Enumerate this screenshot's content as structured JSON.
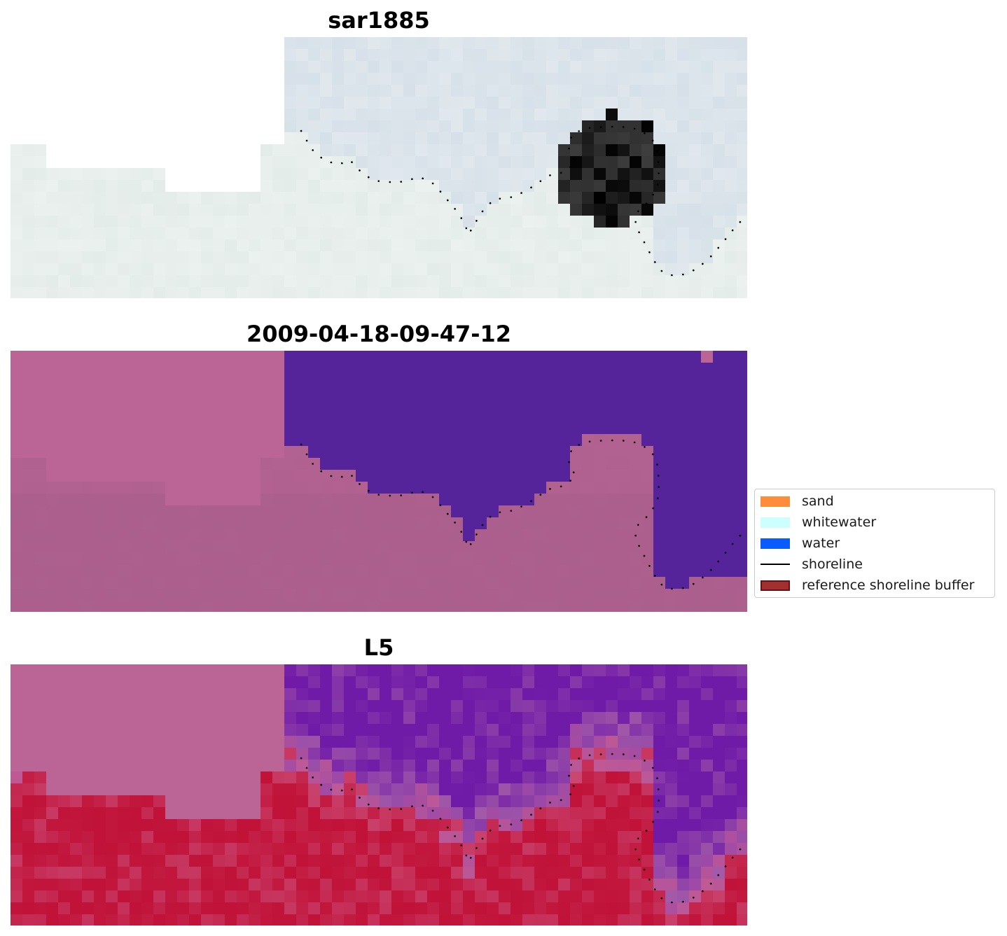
{
  "panels": [
    {
      "title": "sar1885",
      "kind": "sar"
    },
    {
      "title": "2009-04-18-09-47-12",
      "kind": "class"
    },
    {
      "title": "L5",
      "kind": "prob"
    }
  ],
  "legend": {
    "items": [
      {
        "label": "sand",
        "color": "#ff8c3a",
        "type": "patch"
      },
      {
        "label": "whitewater",
        "color": "#ccffff",
        "type": "patch"
      },
      {
        "label": "water",
        "color": "#0a5cff",
        "type": "patch"
      },
      {
        "label": "shoreline",
        "color": "#000000",
        "type": "line"
      },
      {
        "label": "reference shoreline buffer",
        "color": "#a33030",
        "edge": "#6b1010",
        "type": "patch"
      }
    ]
  },
  "colors": {
    "nodata": "#bb6596",
    "class_water": "#55249a",
    "class_land": "#ab5f8c",
    "prob_water": "#6a14a8",
    "prob_land": "#c11238",
    "sar_base": "#dfe6ea",
    "shoreline_dot": "#000000"
  }
}
